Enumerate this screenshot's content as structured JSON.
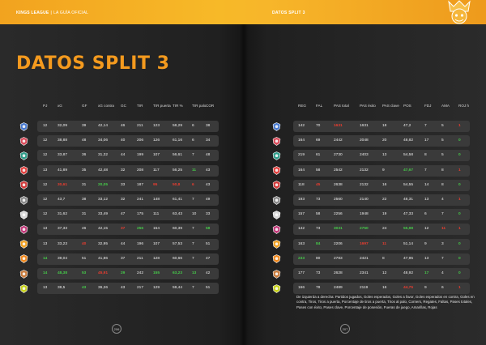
{
  "header": {
    "brand": "KINGS LEAGUE",
    "separator": "|",
    "subtitle": "LA GUÍA OFICIAL",
    "right_title": "DATOS SPLIT 3"
  },
  "page_title": "DATOS SPLIT 3",
  "left_columns": [
    "PJ",
    "xG",
    "GF",
    "xG contra",
    "GC",
    "TIR",
    "TIR puerta",
    "TIR %",
    "TIR palo",
    "COR"
  ],
  "right_columns": [
    "REG",
    "FAL",
    "PAS total",
    "PAS éxito",
    "PAS clave",
    "POS",
    "FDJ",
    "AMA",
    "ROJ h"
  ],
  "teams": [
    {
      "icon": "team-logo-1",
      "color": "#4a7bd0",
      "left": [
        {
          "v": "12"
        },
        {
          "v": "32,09"
        },
        {
          "v": "39"
        },
        {
          "v": "42,14"
        },
        {
          "v": "46"
        },
        {
          "v": "211"
        },
        {
          "v": "123"
        },
        {
          "v": "58,29"
        },
        {
          "v": "6"
        },
        {
          "v": "38"
        }
      ],
      "right": [
        {
          "v": "142"
        },
        {
          "v": "70"
        },
        {
          "v": "1631",
          "c": "r"
        },
        {
          "v": "1631"
        },
        {
          "v": "18"
        },
        {
          "v": "47,2"
        },
        {
          "v": "7"
        },
        {
          "v": "5"
        },
        {
          "v": "1",
          "c": "r"
        }
      ]
    },
    {
      "icon": "team-logo-2",
      "color": "#d94a5a",
      "left": [
        {
          "v": "12"
        },
        {
          "v": "38,88"
        },
        {
          "v": "48"
        },
        {
          "v": "34,06"
        },
        {
          "v": "40"
        },
        {
          "v": "206"
        },
        {
          "v": "126"
        },
        {
          "v": "61,16"
        },
        {
          "v": "6"
        },
        {
          "v": "34"
        }
      ],
      "right": [
        {
          "v": "164"
        },
        {
          "v": "69"
        },
        {
          "v": "2442"
        },
        {
          "v": "2048"
        },
        {
          "v": "20"
        },
        {
          "v": "48,82"
        },
        {
          "v": "17"
        },
        {
          "v": "5"
        },
        {
          "v": "0",
          "c": "g"
        }
      ]
    },
    {
      "icon": "team-logo-3",
      "color": "#2f9d8a",
      "left": [
        {
          "v": "12"
        },
        {
          "v": "33,87"
        },
        {
          "v": "36"
        },
        {
          "v": "31,32"
        },
        {
          "v": "44"
        },
        {
          "v": "199"
        },
        {
          "v": "107"
        },
        {
          "v": "56,61"
        },
        {
          "v": "7"
        },
        {
          "v": "48"
        }
      ],
      "right": [
        {
          "v": "219"
        },
        {
          "v": "61"
        },
        {
          "v": "2730"
        },
        {
          "v": "2403"
        },
        {
          "v": "13"
        },
        {
          "v": "54,58"
        },
        {
          "v": "8"
        },
        {
          "v": "5"
        },
        {
          "v": "0",
          "c": "g"
        }
      ]
    },
    {
      "icon": "team-logo-4",
      "color": "#e2413f",
      "left": [
        {
          "v": "13"
        },
        {
          "v": "41,89"
        },
        {
          "v": "35"
        },
        {
          "v": "42,48"
        },
        {
          "v": "32"
        },
        {
          "v": "208"
        },
        {
          "v": "117"
        },
        {
          "v": "56,25"
        },
        {
          "v": "11",
          "c": "g"
        },
        {
          "v": "43"
        }
      ],
      "right": [
        {
          "v": "164"
        },
        {
          "v": "58"
        },
        {
          "v": "2542"
        },
        {
          "v": "2132"
        },
        {
          "v": "9"
        },
        {
          "v": "47,67",
          "c": "g"
        },
        {
          "v": "7"
        },
        {
          "v": "8"
        },
        {
          "v": "1",
          "c": "r"
        }
      ]
    },
    {
      "icon": "team-logo-5",
      "color": "#d23a3a",
      "left": [
        {
          "v": "12"
        },
        {
          "v": "30,61",
          "c": "r"
        },
        {
          "v": "31"
        },
        {
          "v": "20,05",
          "c": "g"
        },
        {
          "v": "33"
        },
        {
          "v": "187"
        },
        {
          "v": "95",
          "c": "r"
        },
        {
          "v": "50,8",
          "c": "r"
        },
        {
          "v": "6",
          "c": "r"
        },
        {
          "v": "43"
        }
      ],
      "right": [
        {
          "v": "118"
        },
        {
          "v": "45",
          "c": "r"
        },
        {
          "v": "2638"
        },
        {
          "v": "2132"
        },
        {
          "v": "16"
        },
        {
          "v": "54,55"
        },
        {
          "v": "14"
        },
        {
          "v": "8"
        },
        {
          "v": "0",
          "c": "g"
        }
      ]
    },
    {
      "icon": "team-logo-6",
      "color": "#8a8a8a",
      "left": [
        {
          "v": "12"
        },
        {
          "v": "43,7"
        },
        {
          "v": "38"
        },
        {
          "v": "33,12"
        },
        {
          "v": "32"
        },
        {
          "v": "241"
        },
        {
          "v": "148"
        },
        {
          "v": "61,41"
        },
        {
          "v": "7"
        },
        {
          "v": "49"
        }
      ],
      "right": [
        {
          "v": "193"
        },
        {
          "v": "73"
        },
        {
          "v": "2560"
        },
        {
          "v": "2140"
        },
        {
          "v": "22"
        },
        {
          "v": "48,31"
        },
        {
          "v": "13"
        },
        {
          "v": "4"
        },
        {
          "v": "1",
          "c": "r"
        }
      ]
    },
    {
      "icon": "team-logo-7",
      "color": "#d9d9d9",
      "left": [
        {
          "v": "12"
        },
        {
          "v": "31,62"
        },
        {
          "v": "31"
        },
        {
          "v": "33,49"
        },
        {
          "v": "47"
        },
        {
          "v": "175"
        },
        {
          "v": "111"
        },
        {
          "v": "63,43"
        },
        {
          "v": "10"
        },
        {
          "v": "33"
        }
      ],
      "right": [
        {
          "v": "157"
        },
        {
          "v": "58"
        },
        {
          "v": "2256"
        },
        {
          "v": "1948"
        },
        {
          "v": "19"
        },
        {
          "v": "47,33"
        },
        {
          "v": "6"
        },
        {
          "v": "7"
        },
        {
          "v": "0",
          "c": "g"
        }
      ]
    },
    {
      "icon": "team-logo-8",
      "color": "#c23a7a",
      "left": [
        {
          "v": "13"
        },
        {
          "v": "37,33"
        },
        {
          "v": "46"
        },
        {
          "v": "42,15"
        },
        {
          "v": "37",
          "c": "r"
        },
        {
          "v": "256",
          "c": "g"
        },
        {
          "v": "154"
        },
        {
          "v": "60,39"
        },
        {
          "v": "7"
        },
        {
          "v": "58",
          "c": "g"
        }
      ],
      "right": [
        {
          "v": "142"
        },
        {
          "v": "73"
        },
        {
          "v": "3031",
          "c": "g"
        },
        {
          "v": "2750",
          "c": "g"
        },
        {
          "v": "24"
        },
        {
          "v": "55,98",
          "c": "g"
        },
        {
          "v": "12"
        },
        {
          "v": "11",
          "c": "r"
        },
        {
          "v": "1",
          "c": "r"
        }
      ]
    },
    {
      "icon": "team-logo-9",
      "color": "#f0a020",
      "left": [
        {
          "v": "13"
        },
        {
          "v": "33,23"
        },
        {
          "v": "40",
          "c": "r"
        },
        {
          "v": "32,95"
        },
        {
          "v": "44"
        },
        {
          "v": "196"
        },
        {
          "v": "107"
        },
        {
          "v": "57,53"
        },
        {
          "v": "7"
        },
        {
          "v": "51"
        }
      ],
      "right": [
        {
          "v": "163"
        },
        {
          "v": "84",
          "c": "g"
        },
        {
          "v": "2206"
        },
        {
          "v": "1697",
          "c": "r"
        },
        {
          "v": "11",
          "c": "r"
        },
        {
          "v": "51,14"
        },
        {
          "v": "9"
        },
        {
          "v": "3"
        },
        {
          "v": "0",
          "c": "g"
        }
      ]
    },
    {
      "icon": "team-logo-10",
      "color": "#f08a20",
      "left": [
        {
          "v": "14",
          "c": "g"
        },
        {
          "v": "39,04"
        },
        {
          "v": "51"
        },
        {
          "v": "41,86"
        },
        {
          "v": "37"
        },
        {
          "v": "211"
        },
        {
          "v": "128"
        },
        {
          "v": "60,66"
        },
        {
          "v": "7"
        },
        {
          "v": "47"
        }
      ],
      "right": [
        {
          "v": "233",
          "c": "g"
        },
        {
          "v": "80"
        },
        {
          "v": "2783"
        },
        {
          "v": "2421"
        },
        {
          "v": "8"
        },
        {
          "v": "47,95"
        },
        {
          "v": "13"
        },
        {
          "v": "7"
        },
        {
          "v": "0",
          "c": "g"
        }
      ]
    },
    {
      "icon": "team-logo-11",
      "color": "#c87a3a",
      "left": [
        {
          "v": "14",
          "c": "g"
        },
        {
          "v": "48,38",
          "c": "g"
        },
        {
          "v": "53",
          "c": "g"
        },
        {
          "v": "45,91",
          "c": "r"
        },
        {
          "v": "29",
          "c": "g"
        },
        {
          "v": "242"
        },
        {
          "v": "155",
          "c": "g"
        },
        {
          "v": "63,23",
          "c": "g"
        },
        {
          "v": "13",
          "c": "g"
        },
        {
          "v": "42"
        }
      ],
      "right": [
        {
          "v": "177"
        },
        {
          "v": "73"
        },
        {
          "v": "2628"
        },
        {
          "v": "2341"
        },
        {
          "v": "12"
        },
        {
          "v": "48,92"
        },
        {
          "v": "17",
          "c": "g"
        },
        {
          "v": "4"
        },
        {
          "v": "0",
          "c": "g"
        }
      ]
    },
    {
      "icon": "team-logo-12",
      "color": "#c8d21e",
      "left": [
        {
          "v": "13"
        },
        {
          "v": "38,5"
        },
        {
          "v": "43",
          "c": "g"
        },
        {
          "v": "36,26"
        },
        {
          "v": "43"
        },
        {
          "v": "217"
        },
        {
          "v": "129"
        },
        {
          "v": "59,44"
        },
        {
          "v": "7"
        },
        {
          "v": "51"
        }
      ],
      "right": [
        {
          "v": "166"
        },
        {
          "v": "78"
        },
        {
          "v": "2489"
        },
        {
          "v": "2119"
        },
        {
          "v": "16"
        },
        {
          "v": "44,75",
          "c": "r"
        },
        {
          "v": "9"
        },
        {
          "v": "6"
        },
        {
          "v": "1",
          "c": "r"
        }
      ]
    }
  ],
  "legend": "De izquierda a derecha: Partidos jugados, Goles esperados, Goles a favor, Goles esperados en contra, Goles en contra, Tiros, Tiros a puerta, Porcentaje de tiros a puerta, Tiros al palo, Corners, Regates, Faltas, Pases totales, Pases con éxito, Pases clave, Porcentaje de posesión, Fueras de juego, Amarillas, Rojas",
  "page_numbers": {
    "left": "206",
    "right": "207"
  },
  "colors": {
    "accent": "#f49a1e",
    "positive": "#46c94a",
    "negative": "#e83d30"
  }
}
